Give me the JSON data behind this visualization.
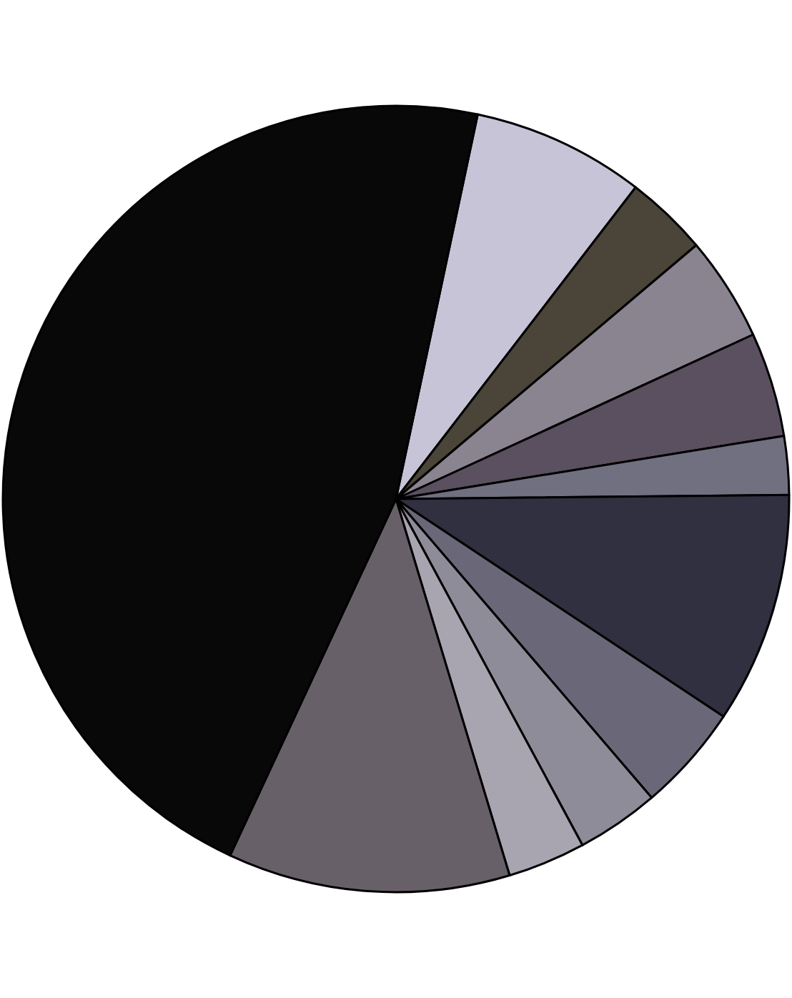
{
  "chart_data": {
    "type": "pie",
    "categories": [
      null,
      null,
      null,
      null,
      null,
      null,
      null,
      null,
      null,
      null,
      null
    ],
    "values": [
      7.1,
      3.4,
      4.3,
      4.3,
      2.4,
      9.5,
      4.4,
      3.4,
      3.2,
      11.6,
      46.4
    ],
    "colors": [
      "#c8c4d8",
      "#4a4538",
      "#8a8490",
      "#5a5060",
      "#707080",
      "#303040",
      "#6a6878",
      "#8e8c98",
      "#a8a4b0",
      "#686068",
      "#080808"
    ],
    "legend": false
  }
}
